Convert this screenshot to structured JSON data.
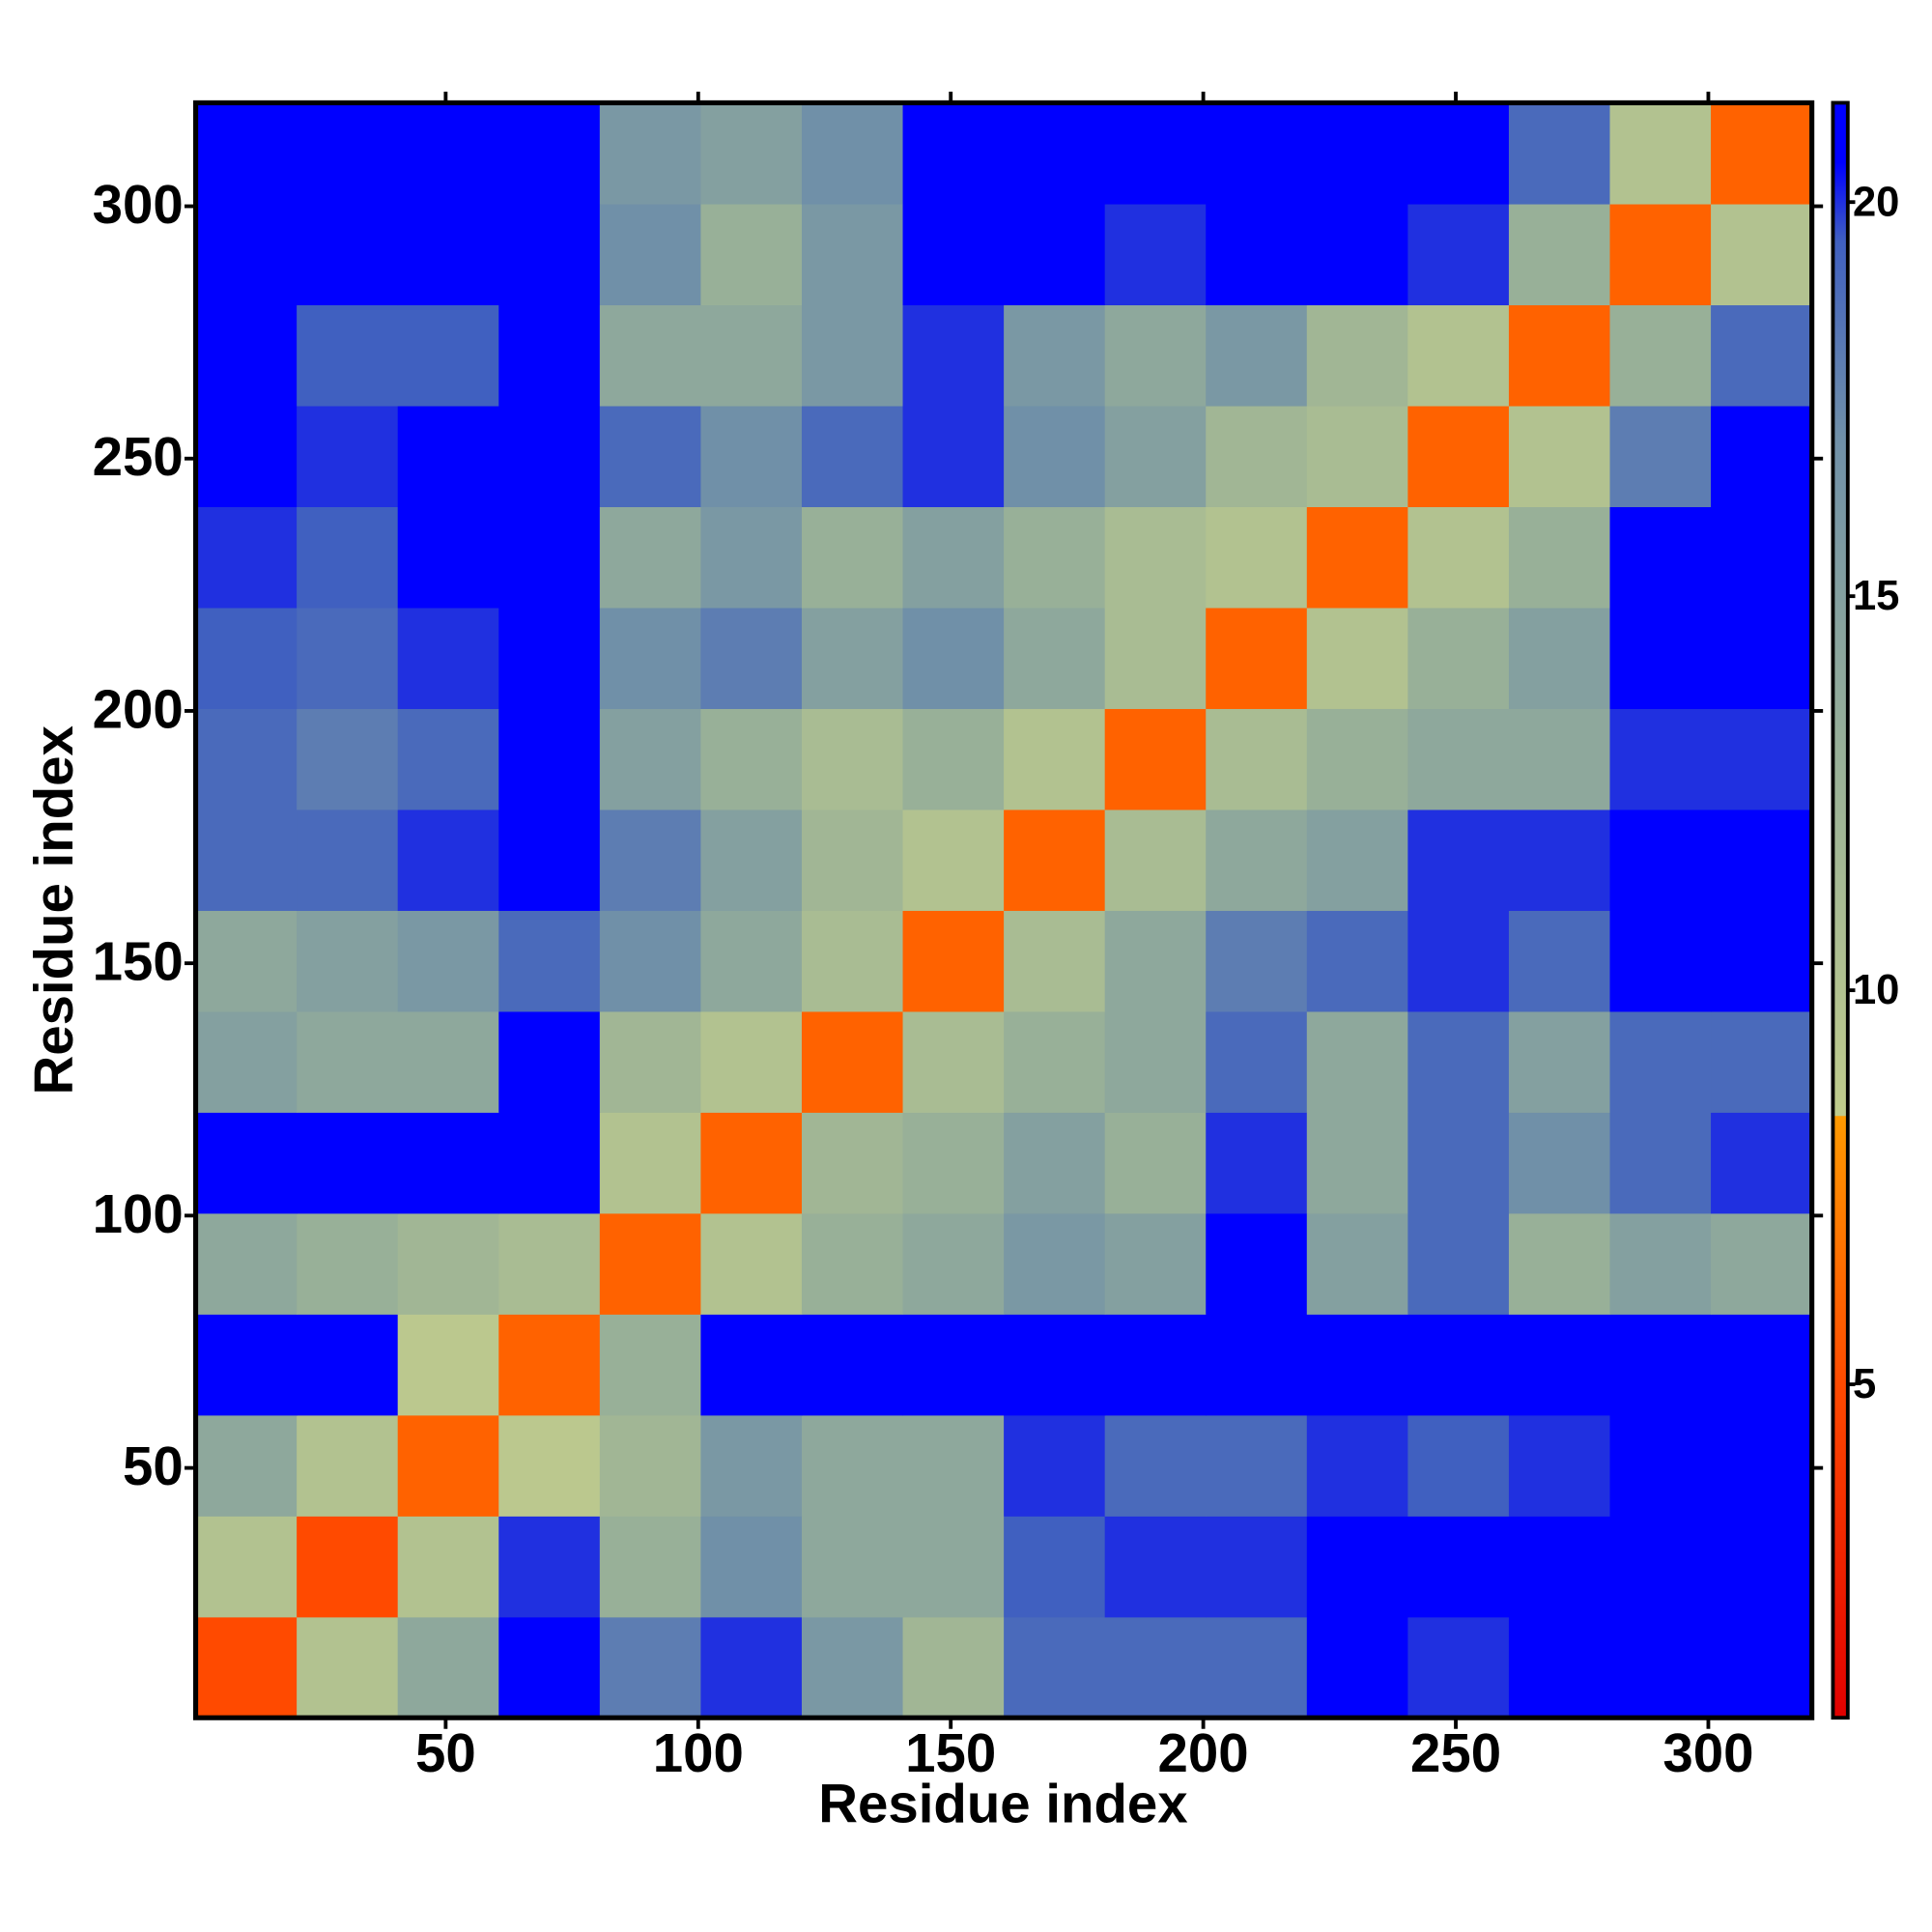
{
  "chart_data": {
    "type": "heatmap",
    "xlabel": "Residue index",
    "ylabel": "Residue index",
    "xlim": [
      0.5,
      320.5
    ],
    "ylim": [
      0.5,
      320.5
    ],
    "xticks": [
      50,
      100,
      150,
      200,
      250,
      300
    ],
    "yticks": [
      50,
      100,
      150,
      200,
      250,
      300
    ],
    "bins": [
      0.5,
      20.5,
      40.5,
      60.5,
      80.5,
      100.5,
      120.5,
      140.5,
      160.5,
      180.5,
      200.5,
      220.5,
      240.5,
      260.5,
      280.5,
      300.5,
      320.5
    ],
    "z": [
      [
        5,
        10,
        14,
        21,
        18,
        20,
        16,
        12,
        19,
        19,
        19,
        20.5,
        20,
        21,
        21,
        21
      ],
      [
        10,
        5,
        10,
        20,
        13,
        17,
        14,
        14,
        19.5,
        20,
        20,
        20.5,
        21,
        21,
        21,
        21
      ],
      [
        14,
        10,
        6,
        9,
        12,
        16,
        14,
        14,
        20,
        19,
        19,
        20,
        19.5,
        20,
        21,
        21
      ],
      [
        21,
        21,
        9,
        6,
        13,
        21,
        21,
        20.5,
        21,
        21,
        21,
        21,
        21,
        21,
        21,
        21
      ],
      [
        14,
        13,
        12,
        11,
        6,
        10,
        13,
        14,
        16,
        15,
        21,
        15,
        19,
        13,
        15,
        14
      ],
      [
        21,
        21,
        21,
        21,
        10,
        6,
        12,
        13,
        15,
        13,
        20,
        14,
        19,
        17,
        19,
        20
      ],
      [
        15,
        14,
        14,
        21,
        12,
        10,
        6,
        11,
        13,
        14,
        19,
        14,
        19,
        15,
        19,
        19
      ],
      [
        14,
        15,
        16,
        19,
        17,
        14,
        11,
        6,
        11,
        14,
        18,
        19,
        20,
        19,
        21,
        21
      ],
      [
        19,
        19,
        20,
        21,
        18,
        15,
        12,
        10,
        6,
        11,
        14,
        15,
        20,
        20,
        21,
        21
      ],
      [
        19,
        18,
        19,
        21,
        15,
        13,
        11,
        13,
        10,
        6,
        11,
        13,
        14,
        14,
        20,
        20
      ],
      [
        19.5,
        19,
        20,
        21,
        17,
        18,
        15,
        17,
        14,
        11,
        6,
        10,
        13,
        15,
        21,
        21
      ],
      [
        20,
        19.5,
        21,
        21,
        14,
        16,
        13,
        15,
        13,
        11,
        10,
        6,
        10,
        13,
        21,
        20.5
      ],
      [
        21,
        20,
        21,
        21,
        19,
        17,
        19,
        20,
        17,
        15,
        12,
        11,
        6,
        10,
        18,
        21
      ],
      [
        21,
        19.5,
        19.5,
        21,
        14,
        14,
        16,
        20,
        16,
        14,
        16,
        12,
        10,
        6,
        13,
        19
      ],
      [
        21,
        21,
        21,
        21,
        17,
        13,
        16,
        20.5,
        21,
        20,
        21,
        21,
        20,
        13,
        6,
        10
      ],
      [
        21,
        21,
        21,
        21,
        16,
        15,
        17,
        20.5,
        21,
        21,
        21,
        20.5,
        21,
        19,
        10,
        6
      ]
    ],
    "colorbar_lim": [
      0.77,
      21.26
    ],
    "colorbar_ticks": [
      5,
      10,
      15,
      20
    ],
    "colorscale": [
      {
        "value": 0.77,
        "color": "#e00000"
      },
      {
        "value": 5,
        "color": "#ff4a00"
      },
      {
        "value": 8.4,
        "color": "#ff9a00"
      },
      {
        "value": 8.41,
        "color": "#c0cc8c"
      },
      {
        "value": 13,
        "color": "#98b098"
      },
      {
        "value": 17,
        "color": "#7090a8"
      },
      {
        "value": 19.5,
        "color": "#4060c0"
      },
      {
        "value": 20.5,
        "color": "#0000ff"
      },
      {
        "value": 21.26,
        "color": "#0000ff"
      }
    ]
  }
}
